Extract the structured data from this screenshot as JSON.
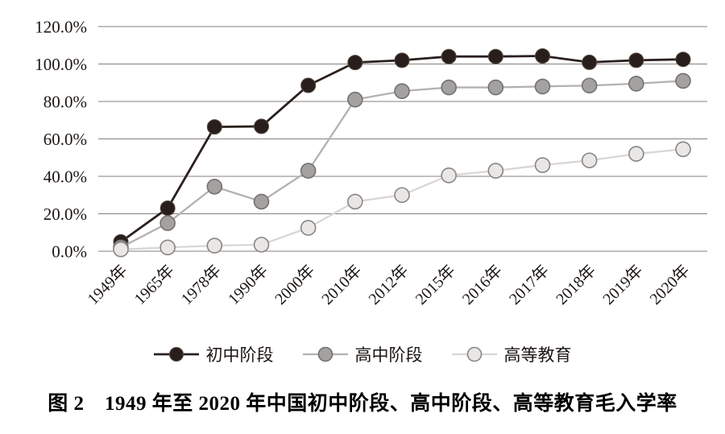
{
  "figure": {
    "caption": "图 2　1949 年至 2020 年中国初中阶段、高中阶段、高等教育毛入学率"
  },
  "chart_data": {
    "type": "line",
    "title": "图 2　1949 年至 2020 年中国初中阶段、高中阶段、高等教育毛入学率",
    "categories": [
      "1949年",
      "1965年",
      "1978年",
      "1990年",
      "2000年",
      "2010年",
      "2012年",
      "2015年",
      "2016年",
      "2017年",
      "2018年",
      "2019年",
      "2020年"
    ],
    "series": [
      {
        "id": "junior-secondary",
        "name": "初中阶段",
        "values": [
          5.0,
          23.0,
          66.4,
          66.7,
          88.6,
          100.8,
          102.0,
          104.0,
          104.0,
          104.3,
          100.9,
          102.0,
          102.5
        ],
        "line_color": "#2a201d",
        "line_width": 2.8,
        "marker_fill": "#281e1c",
        "marker_stroke": "#55493f",
        "marker_stroke_width": 1
      },
      {
        "id": "senior-secondary",
        "name": "高中阶段",
        "values": [
          2.0,
          15.0,
          34.5,
          26.5,
          43.0,
          81.0,
          85.5,
          87.5,
          87.5,
          88.0,
          88.5,
          89.5,
          91.0
        ],
        "line_color": "#b4b1b0",
        "line_width": 2.3,
        "marker_fill": "#a3a2a1",
        "marker_stroke": "#767170",
        "marker_stroke_width": 1.6
      },
      {
        "id": "higher-education",
        "name": "高等教育",
        "values": [
          1.0,
          2.0,
          3.0,
          3.5,
          12.5,
          26.5,
          30.0,
          40.5,
          43.0,
          46.0,
          48.5,
          52.0,
          54.5
        ],
        "line_color": "#d9d6d5",
        "line_width": 2.3,
        "marker_fill": "#e9e7e6",
        "marker_stroke": "#8b8683",
        "marker_stroke_width": 1.6
      }
    ],
    "ylim": [
      0,
      120
    ],
    "ytick_step": 20,
    "ytick_labels": [
      "0.0%",
      "20.0%",
      "40.0%",
      "60.0%",
      "80.0%",
      "100.0%",
      "120.0%"
    ],
    "xlabel": "",
    "ylabel": "",
    "grid": true,
    "gridline_color": "#86807e",
    "tick_label_color": "#1c1613",
    "legend_position": "bottom",
    "x_tick_rotation": -45
  }
}
